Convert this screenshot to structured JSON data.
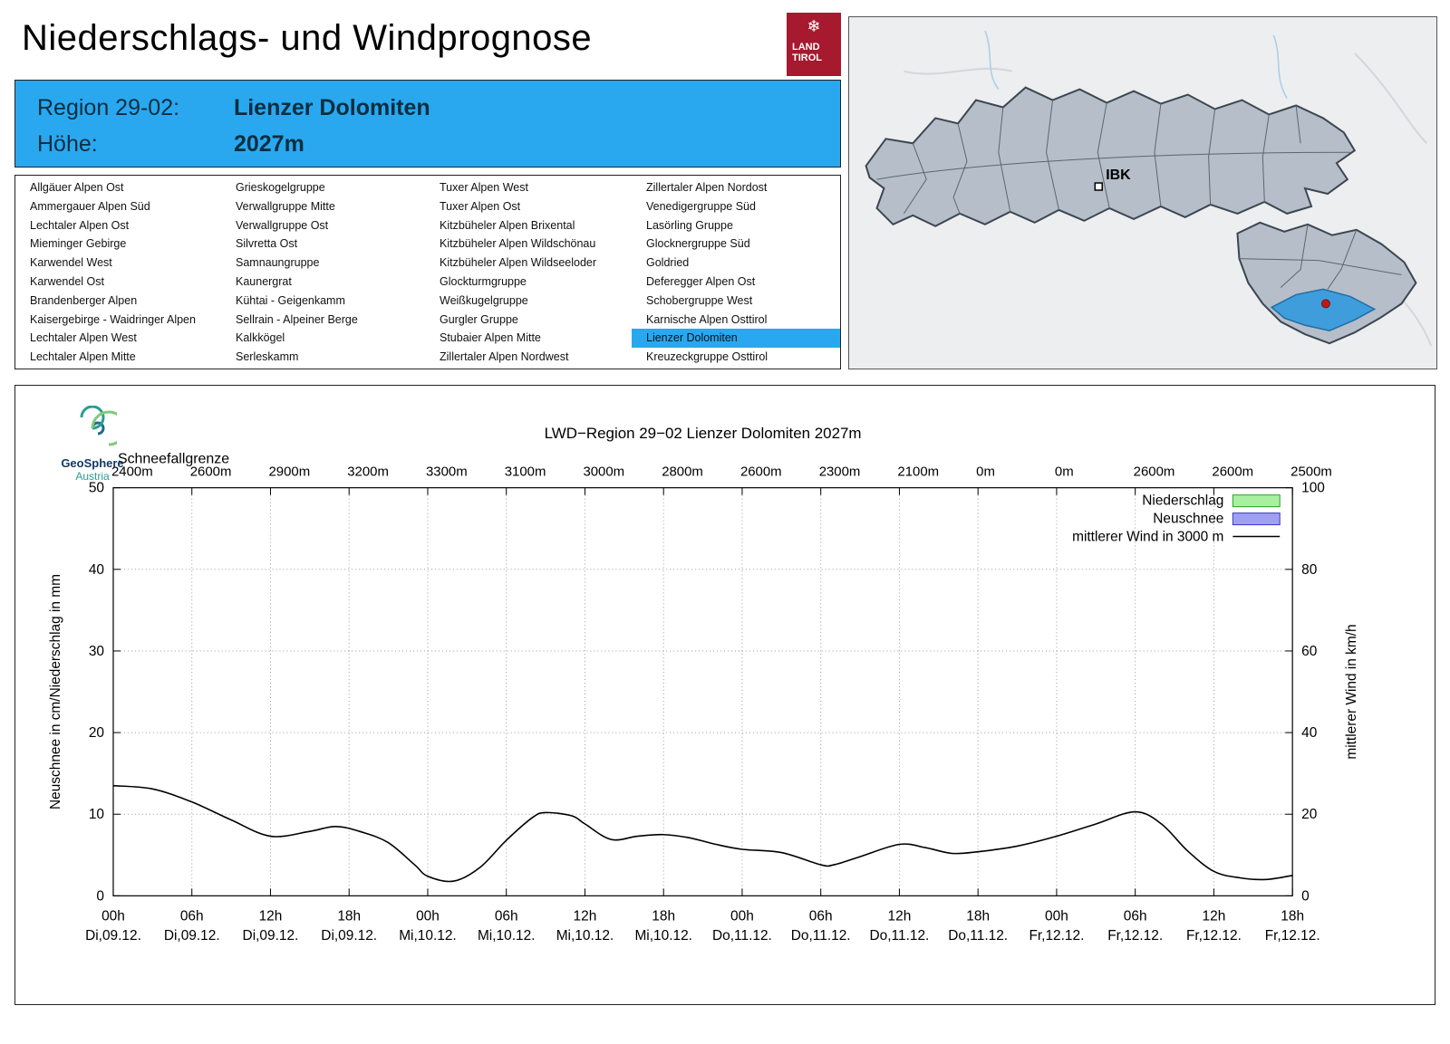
{
  "page": {
    "title": "Niederschlags- und Windprognose"
  },
  "logo": {
    "icon": "❄",
    "line1": "LAND",
    "line2": "TIROL",
    "color": "#a6192e"
  },
  "region_header": {
    "region_label": "Region 29-02:",
    "region_name": "Lienzer Dolomiten",
    "altitude_label": "Höhe:",
    "altitude_value": "2027m",
    "bg": "#29a8f0"
  },
  "region_table": {
    "selected": "Lienzer Dolomiten",
    "columns": [
      [
        "Allgäuer Alpen Ost",
        "Ammergauer Alpen Süd",
        "Lechtaler Alpen Ost",
        "Mieminger Gebirge",
        "Karwendel West",
        "Karwendel Ost",
        "Brandenberger Alpen",
        "Kaisergebirge - Waidringer Alpen",
        "Lechtaler Alpen West",
        "Lechtaler Alpen Mitte"
      ],
      [
        "Grieskogelgruppe",
        "Verwallgruppe Mitte",
        "Verwallgruppe Ost",
        "Silvretta Ost",
        "Samnaungruppe",
        "Kaunergrat",
        "Kühtai - Geigenkamm",
        "Sellrain - Alpeiner Berge",
        "Kalkkögel",
        "Serleskamm"
      ],
      [
        "Tuxer Alpen West",
        "Tuxer Alpen Ost",
        "Kitzbüheler Alpen Brixental",
        "Kitzbüheler Alpen Wildschönau",
        "Kitzbüheler Alpen Wildseeloder",
        "Glockturmgruppe",
        "Weißkugelgruppe",
        "Gurgler Gruppe",
        "Stubaier Alpen Mitte",
        "Zillertaler Alpen Nordwest"
      ],
      [
        "Zillertaler Alpen Nordost",
        "Venedigergruppe Süd",
        "Lasörling Gruppe",
        "Glocknergruppe Süd",
        "Goldried",
        "Deferegger Alpen Ost",
        "Schobergruppe West",
        "Karnische Alpen Osttirol",
        "Lienzer Dolomiten",
        "Kreuzeckgruppe Osttirol"
      ]
    ]
  },
  "map": {
    "ibk_label": "IBK",
    "highlight_color": "#3f9ddc",
    "region_fill": "#b5bec9",
    "marker_color": "#c01818"
  },
  "geosphere": {
    "name": "GeoSphere",
    "country": "Austria"
  },
  "chart_data": {
    "type": "line",
    "title": "LWD−Region 29−02 Lienzer Dolomiten 2027m",
    "snowline_label": "Schneefallgrenze",
    "snowline_values": [
      "2400m",
      "2600m",
      "2900m",
      "3200m",
      "3300m",
      "3100m",
      "3000m",
      "2800m",
      "2600m",
      "2300m",
      "2100m",
      "0m",
      "0m",
      "2600m",
      "2600m",
      "2500m"
    ],
    "x_hour_labels": [
      "00h",
      "06h",
      "12h",
      "18h",
      "00h",
      "06h",
      "12h",
      "18h",
      "00h",
      "06h",
      "12h",
      "18h",
      "00h",
      "06h",
      "12h",
      "18h"
    ],
    "x_date_labels": [
      "Di,09.12.",
      "Di,09.12.",
      "Di,09.12.",
      "Di,09.12.",
      "Mi,10.12.",
      "Mi,10.12.",
      "Mi,10.12.",
      "Mi,10.12.",
      "Do,11.12.",
      "Do,11.12.",
      "Do,11.12.",
      "Do,11.12.",
      "Fr,12.12.",
      "Fr,12.12.",
      "Fr,12.12.",
      "Fr,12.12."
    ],
    "ylabel_left": "Neuschnee in cm/Niederschlag in mm",
    "ylabel_right": "mittlerer Wind in km/h",
    "ylim_left": [
      0,
      50
    ],
    "ylim_right": [
      0,
      100
    ],
    "yticks_left": [
      0,
      10,
      20,
      30,
      40,
      50
    ],
    "yticks_right": [
      0,
      20,
      40,
      60,
      80,
      100
    ],
    "x_hours_range": [
      0,
      90
    ],
    "grid": true,
    "legend_position": "top-right",
    "legend": [
      {
        "label": "Niederschlag",
        "type": "box",
        "fill": "#a8f0a0",
        "stroke": "#28a428"
      },
      {
        "label": "Neuschnee",
        "type": "box",
        "fill": "#a0a0f0",
        "stroke": "#3838cc"
      },
      {
        "label": "mittlerer Wind in 3000 m",
        "type": "line",
        "stroke": "#000000"
      }
    ],
    "series": [
      {
        "name": "Niederschlag",
        "axis": "left",
        "unit": "mm",
        "values": []
      },
      {
        "name": "Neuschnee",
        "axis": "left",
        "unit": "cm",
        "values": []
      },
      {
        "name": "mittlerer Wind in 3000 m",
        "axis": "right",
        "unit": "km/h",
        "points": [
          [
            0,
            27
          ],
          [
            3,
            26.2
          ],
          [
            6,
            23
          ],
          [
            9,
            18.6
          ],
          [
            12,
            14.6
          ],
          [
            15,
            15.8
          ],
          [
            17,
            17
          ],
          [
            19,
            15.6
          ],
          [
            21,
            13
          ],
          [
            23,
            7.6
          ],
          [
            24,
            4.8
          ],
          [
            26,
            3.6
          ],
          [
            28,
            7
          ],
          [
            30,
            13.6
          ],
          [
            32,
            19.2
          ],
          [
            33,
            20.4
          ],
          [
            35,
            19.6
          ],
          [
            36,
            17.6
          ],
          [
            38,
            13.8
          ],
          [
            40,
            14.6
          ],
          [
            42,
            15
          ],
          [
            44,
            14.2
          ],
          [
            46,
            12.6
          ],
          [
            48,
            11.4
          ],
          [
            51,
            10.6
          ],
          [
            54,
            7.6
          ],
          [
            55,
            7.6
          ],
          [
            57,
            9.6
          ],
          [
            60,
            12.6
          ],
          [
            62,
            11.8
          ],
          [
            64,
            10.4
          ],
          [
            66,
            10.8
          ],
          [
            69,
            12.2
          ],
          [
            72,
            14.6
          ],
          [
            75,
            17.6
          ],
          [
            78,
            20.6
          ],
          [
            80,
            17.6
          ],
          [
            82,
            11
          ],
          [
            84,
            6
          ],
          [
            86,
            4.4
          ],
          [
            88,
            4
          ],
          [
            90,
            5
          ]
        ]
      }
    ]
  }
}
